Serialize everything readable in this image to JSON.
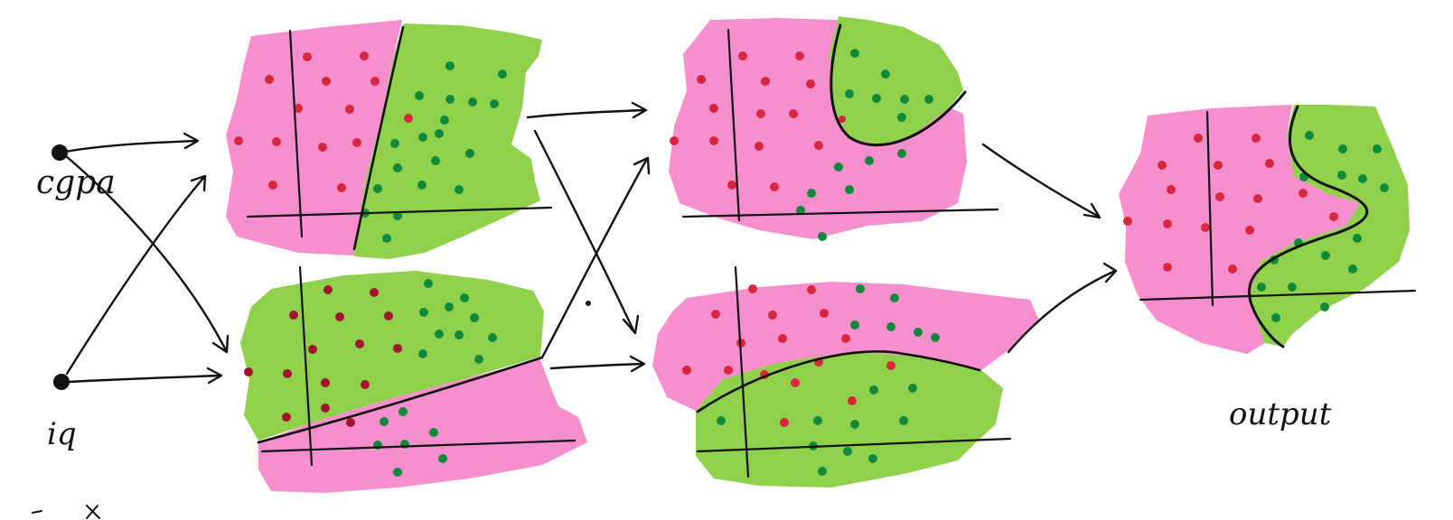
{
  "inputs": {
    "cgpa_label": "cgpa",
    "iq_label": "iq"
  },
  "output_label": "output",
  "colors": {
    "pink_region": "#f78fcf",
    "green_region": "#8fd14a",
    "red_point": "#d7263d",
    "green_point": "#0f8a3a",
    "ink": "#111111"
  },
  "panels": [
    {
      "id": "layer1-top",
      "stage": "hidden-layer-1",
      "boundary": "straight-line"
    },
    {
      "id": "layer1-bottom",
      "stage": "hidden-layer-1",
      "boundary": "straight-line"
    },
    {
      "id": "layer2-top",
      "stage": "hidden-layer-2",
      "boundary": "curve"
    },
    {
      "id": "layer2-bottom",
      "stage": "hidden-layer-2",
      "boundary": "curve"
    },
    {
      "id": "output",
      "stage": "output",
      "boundary": "s-curve"
    }
  ]
}
